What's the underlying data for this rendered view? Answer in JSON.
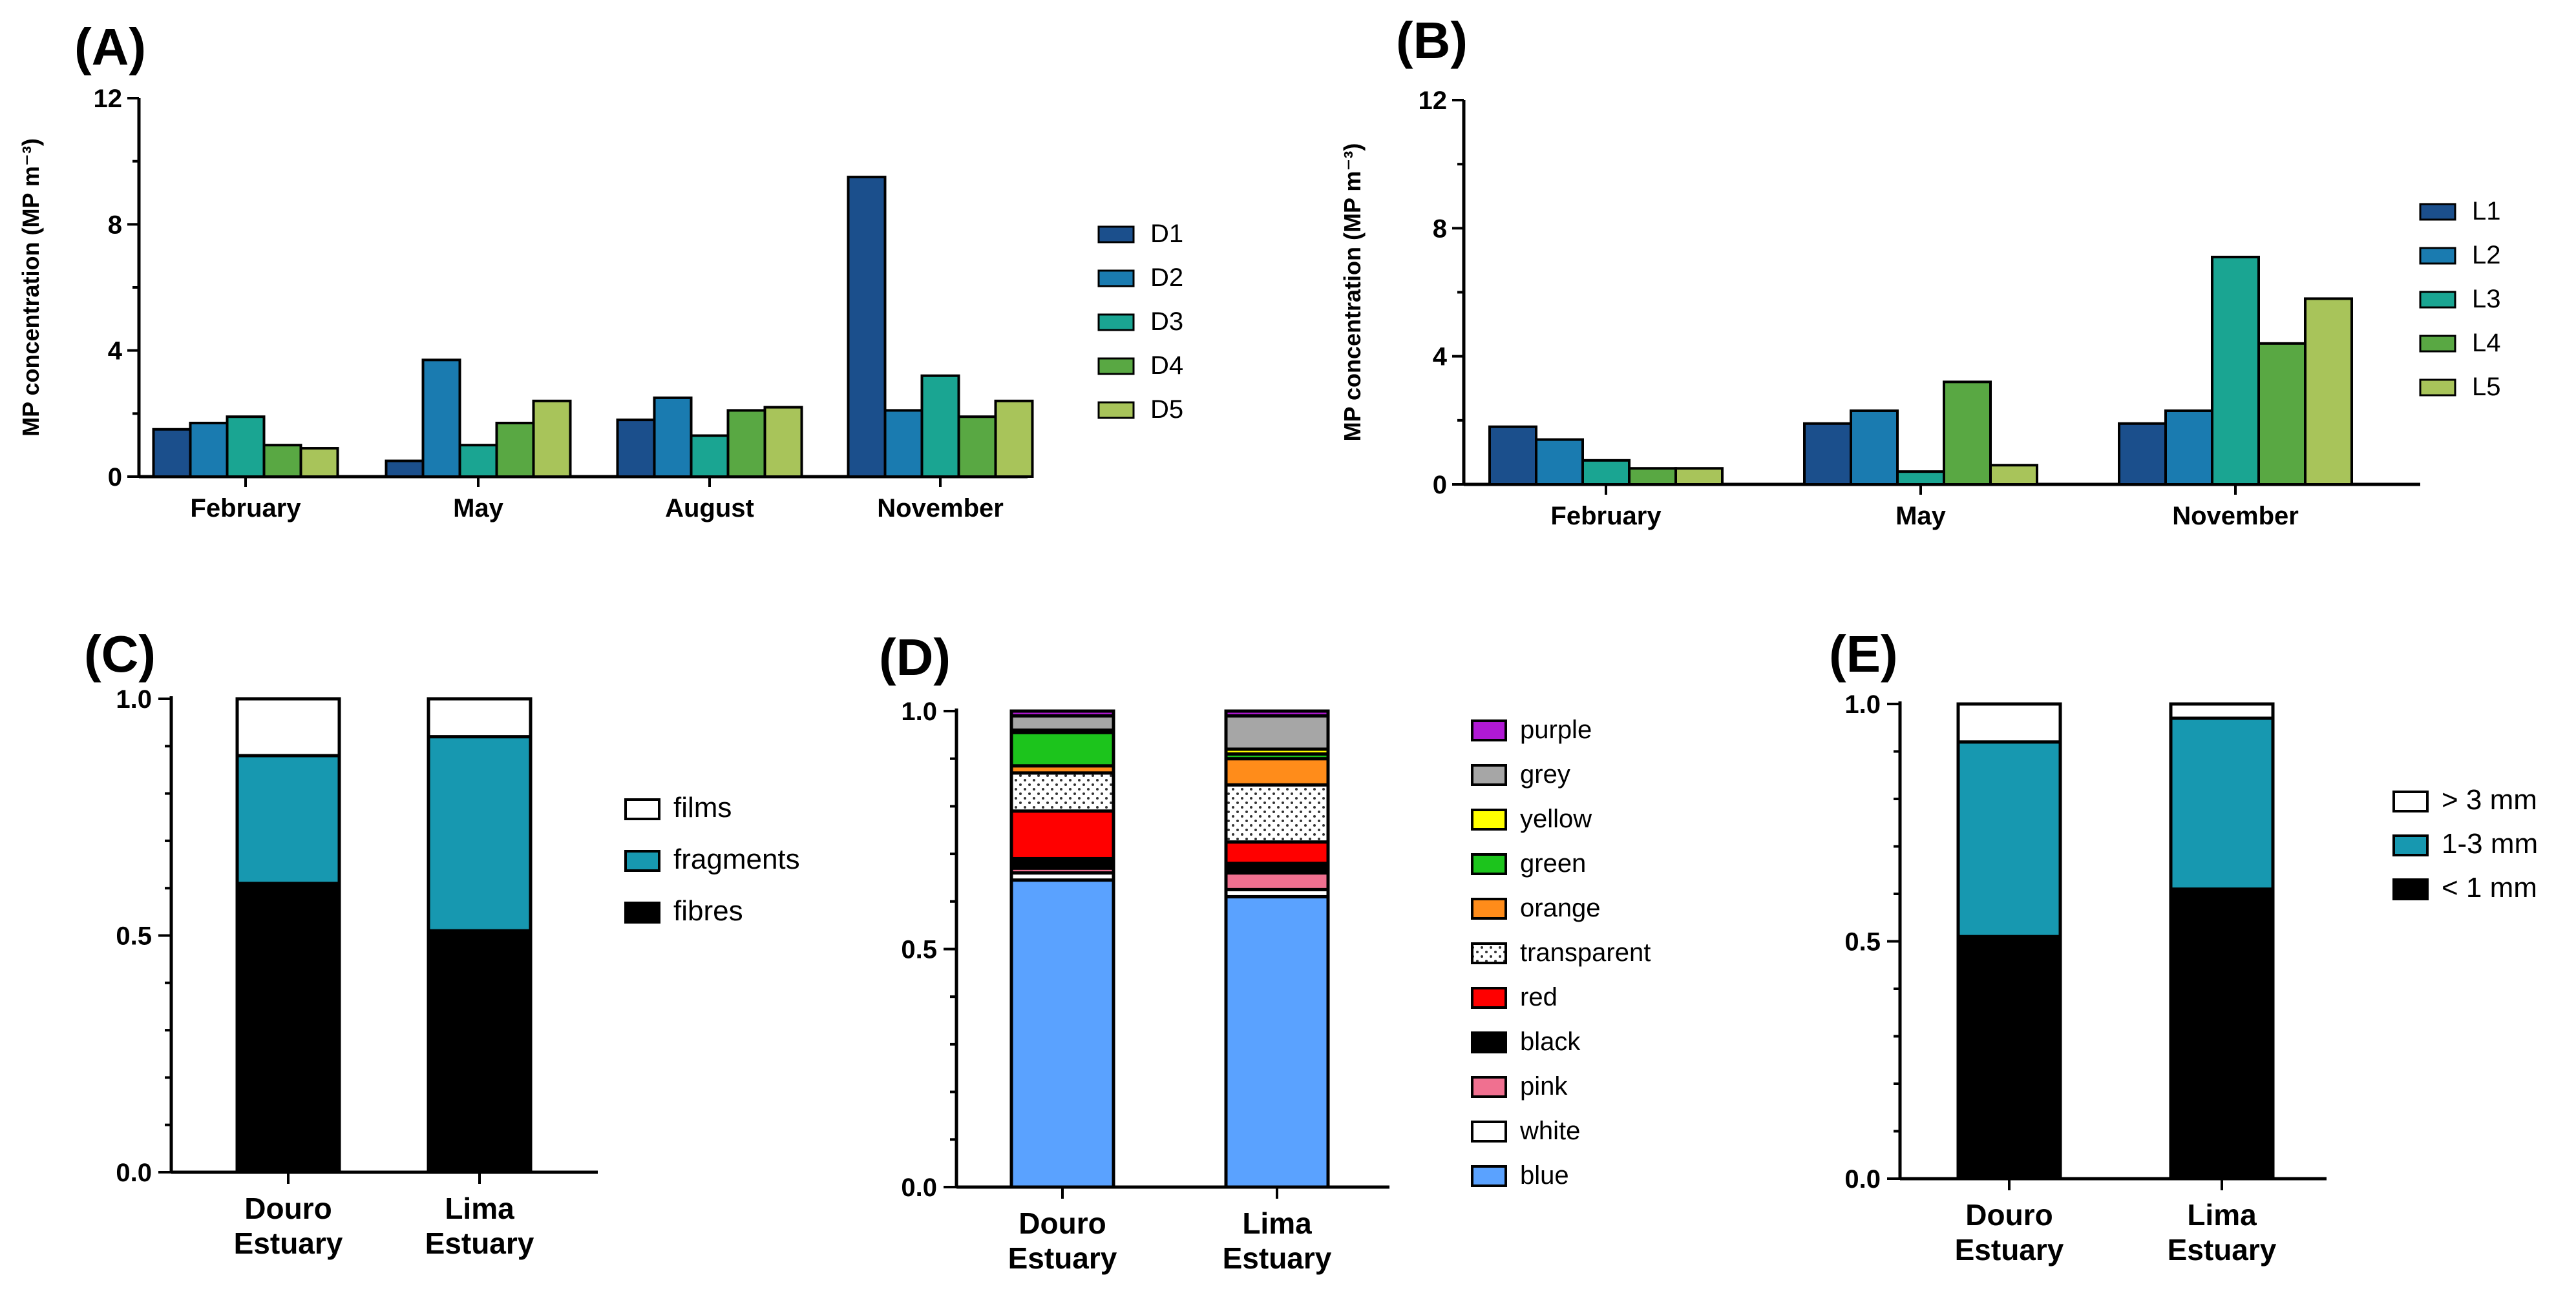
{
  "chart_data": [
    {
      "panel": "(A)",
      "type": "bar",
      "ylabel": "MP concentration (MP m⁻³)",
      "ylim": [
        0,
        12
      ],
      "yticks": [
        "0",
        "4",
        "8",
        "12"
      ],
      "categories": [
        "February",
        "May",
        "August",
        "November"
      ],
      "series": [
        {
          "name": "D1",
          "color": "#1b4f8c",
          "values": [
            1.5,
            0.5,
            1.8,
            9.5
          ]
        },
        {
          "name": "D2",
          "color": "#1a7bb0",
          "values": [
            1.7,
            3.7,
            2.5,
            2.1
          ]
        },
        {
          "name": "D3",
          "color": "#1aa592",
          "values": [
            1.9,
            1.0,
            1.3,
            3.2
          ]
        },
        {
          "name": "D4",
          "color": "#59a843",
          "values": [
            1.0,
            1.7,
            2.1,
            1.9
          ]
        },
        {
          "name": "D5",
          "color": "#a8c45a",
          "values": [
            0.9,
            2.4,
            2.2,
            2.4
          ]
        }
      ]
    },
    {
      "panel": "(B)",
      "type": "bar",
      "ylabel": "MP concentration (MP m⁻³)",
      "ylim": [
        0,
        12
      ],
      "yticks": [
        "0",
        "4",
        "8",
        "12"
      ],
      "categories": [
        "February",
        "May",
        "November"
      ],
      "series": [
        {
          "name": "L1",
          "color": "#1b4f8c",
          "values": [
            1.8,
            1.9,
            1.9
          ]
        },
        {
          "name": "L2",
          "color": "#1a7bb0",
          "values": [
            1.4,
            2.3,
            2.3
          ]
        },
        {
          "name": "L3",
          "color": "#1aa592",
          "values": [
            0.75,
            0.4,
            7.1
          ]
        },
        {
          "name": "L4",
          "color": "#59a843",
          "values": [
            0.5,
            3.2,
            4.4
          ]
        },
        {
          "name": "L5",
          "color": "#a8c45a",
          "values": [
            0.5,
            0.6,
            5.8
          ]
        }
      ]
    },
    {
      "panel": "(C)",
      "type": "bar",
      "stacked": true,
      "ylim": [
        0,
        1
      ],
      "yticks": [
        "0.0",
        "0.5",
        "1.0"
      ],
      "categories": [
        "Douro Estuary",
        "Lima Estuary"
      ],
      "series": [
        {
          "name": "fibres",
          "color": "#000000",
          "values": [
            0.61,
            0.51
          ]
        },
        {
          "name": "fragments",
          "color": "#1798b0",
          "values": [
            0.27,
            0.41
          ]
        },
        {
          "name": "films",
          "color": "#ffffff",
          "values": [
            0.12,
            0.08
          ]
        }
      ],
      "legend_order": [
        "films",
        "fragments",
        "fibres"
      ]
    },
    {
      "panel": "(D)",
      "type": "bar",
      "stacked": true,
      "ylim": [
        0,
        1
      ],
      "yticks": [
        "0.0",
        "0.5",
        "1.0"
      ],
      "categories": [
        "Douro Estuary",
        "Lima Estuary"
      ],
      "series": [
        {
          "name": "blue",
          "color": "#5aa2ff",
          "values": [
            0.645,
            0.61
          ]
        },
        {
          "name": "white",
          "color": "#ffffff",
          "values": [
            0.015,
            0.015
          ]
        },
        {
          "name": "pink",
          "color": "#f07090",
          "values": [
            0.01,
            0.035
          ]
        },
        {
          "name": "black",
          "color": "#000000",
          "values": [
            0.02,
            0.02
          ]
        },
        {
          "name": "red",
          "color": "#ff0000",
          "values": [
            0.1,
            0.045
          ]
        },
        {
          "name": "transparent",
          "color": "dotted",
          "values": [
            0.08,
            0.12
          ]
        },
        {
          "name": "orange",
          "color": "#ff8c1a",
          "values": [
            0.015,
            0.055
          ]
        },
        {
          "name": "green",
          "color": "#1cc41c",
          "values": [
            0.07,
            0.01
          ]
        },
        {
          "name": "yellow",
          "color": "#ffff00",
          "values": [
            0.005,
            0.01
          ]
        },
        {
          "name": "grey",
          "color": "#a6a6a6",
          "values": [
            0.03,
            0.07
          ]
        },
        {
          "name": "purple",
          "color": "#b019d4",
          "values": [
            0.01,
            0.01
          ]
        }
      ],
      "legend_order": [
        "purple",
        "grey",
        "yellow",
        "green",
        "orange",
        "transparent",
        "red",
        "black",
        "pink",
        "white",
        "blue"
      ]
    },
    {
      "panel": "(E)",
      "type": "bar",
      "stacked": true,
      "ylim": [
        0,
        1
      ],
      "yticks": [
        "0.0",
        "0.5",
        "1.0"
      ],
      "categories": [
        "Douro Estuary",
        "Lima Estuary"
      ],
      "series": [
        {
          "name": "< 1 mm",
          "color": "#000000",
          "values": [
            0.51,
            0.61
          ]
        },
        {
          "name": "1-3 mm",
          "color": "#1798b0",
          "values": [
            0.41,
            0.36
          ]
        },
        {
          "name": "> 3 mm",
          "color": "#ffffff",
          "values": [
            0.08,
            0.03
          ]
        }
      ],
      "legend_order": [
        "> 3 mm",
        "1-3 mm",
        "< 1 mm"
      ]
    }
  ]
}
